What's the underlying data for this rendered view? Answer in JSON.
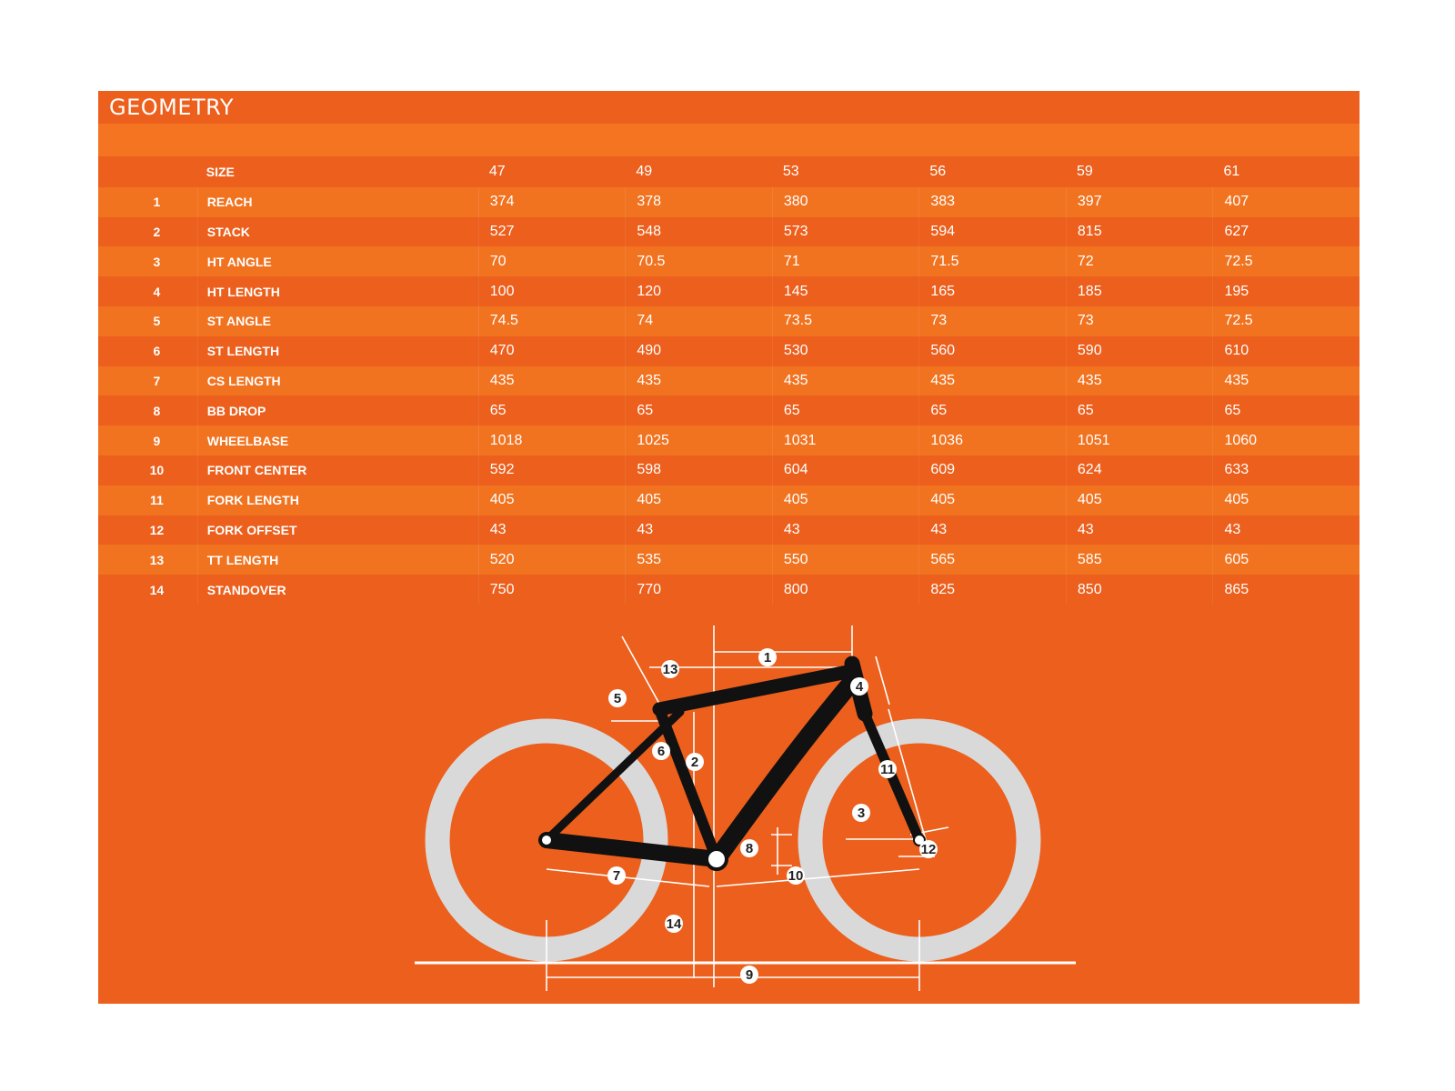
{
  "title": "GEOMETRY",
  "size_label": "SIZE",
  "sizes": [
    "47",
    "49",
    "53",
    "56",
    "59",
    "61"
  ],
  "rows": [
    {
      "num": "1",
      "label": "REACH",
      "values": [
        "374",
        "378",
        "380",
        "383",
        "397",
        "407"
      ]
    },
    {
      "num": "2",
      "label": "STACK",
      "values": [
        "527",
        "548",
        "573",
        "594",
        "815",
        "627"
      ]
    },
    {
      "num": "3",
      "label": "HT ANGLE",
      "values": [
        "70",
        "70.5",
        "71",
        "71.5",
        "72",
        "72.5"
      ]
    },
    {
      "num": "4",
      "label": "HT LENGTH",
      "values": [
        "100",
        "120",
        "145",
        "165",
        "185",
        "195"
      ]
    },
    {
      "num": "5",
      "label": "ST ANGLE",
      "values": [
        "74.5",
        "74",
        "73.5",
        "73",
        "73",
        "72.5"
      ]
    },
    {
      "num": "6",
      "label": "ST LENGTH",
      "values": [
        "470",
        "490",
        "530",
        "560",
        "590",
        "610"
      ]
    },
    {
      "num": "7",
      "label": "CS LENGTH",
      "values": [
        "435",
        "435",
        "435",
        "435",
        "435",
        "435"
      ]
    },
    {
      "num": "8",
      "label": "BB DROP",
      "values": [
        "65",
        "65",
        "65",
        "65",
        "65",
        "65"
      ]
    },
    {
      "num": "9",
      "label": "WHEELBASE",
      "values": [
        "1018",
        "1025",
        "1031",
        "1036",
        "1051",
        "1060"
      ]
    },
    {
      "num": "10",
      "label": "FRONT CENTER",
      "values": [
        "592",
        "598",
        "604",
        "609",
        "624",
        "633"
      ]
    },
    {
      "num": "11",
      "label": "FORK LENGTH",
      "values": [
        "405",
        "405",
        "405",
        "405",
        "405",
        "405"
      ]
    },
    {
      "num": "12",
      "label": "FORK OFFSET",
      "values": [
        "43",
        "43",
        "43",
        "43",
        "43",
        "43"
      ]
    },
    {
      "num": "13",
      "label": "TT LENGTH",
      "values": [
        "520",
        "535",
        "550",
        "565",
        "585",
        "605"
      ]
    },
    {
      "num": "14",
      "label": "STANDOVER",
      "values": [
        "750",
        "770",
        "800",
        "825",
        "850",
        "865"
      ]
    }
  ],
  "diagram_markers": [
    "1",
    "2",
    "3",
    "4",
    "5",
    "6",
    "7",
    "8",
    "9",
    "10",
    "11",
    "12",
    "13",
    "14"
  ],
  "colors": {
    "panel": "#ec5f1c",
    "band": "#f17320",
    "tire": "#d9d9d9",
    "frame": "#111111",
    "lines": "#ffffff"
  }
}
